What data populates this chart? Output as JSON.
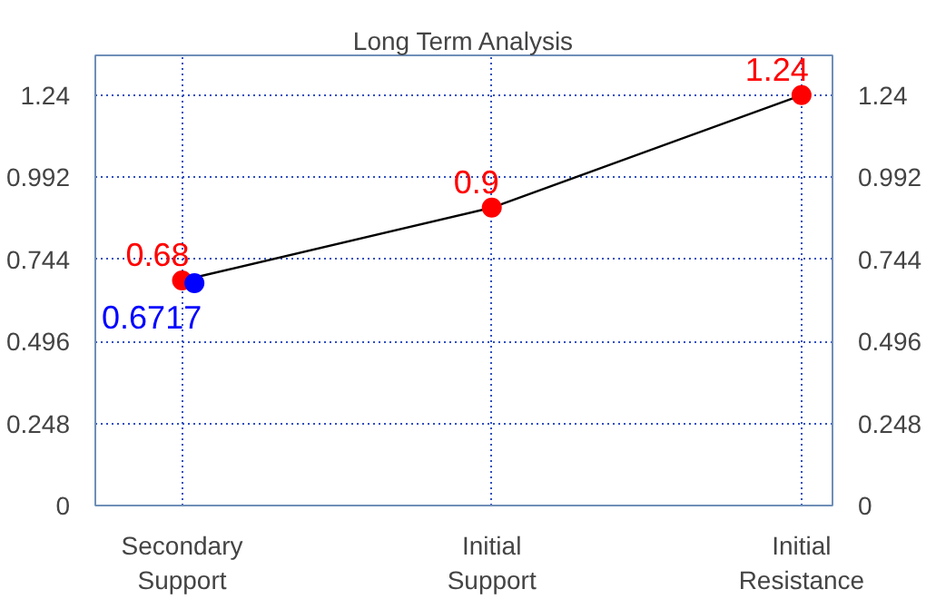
{
  "chart_data": {
    "type": "line",
    "title": "Long Term Analysis",
    "categories": [
      "Secondary Support",
      "Initial Support",
      "Initial Resistance"
    ],
    "series": [
      {
        "type": "line",
        "color": "#000000",
        "marker": "none",
        "values": [
          0.68,
          0.9,
          1.24
        ],
        "value_labels": [
          null,
          null,
          null
        ]
      },
      {
        "type": "scatter",
        "color": "#ff0000",
        "values": [
          0.68,
          0.9,
          1.24
        ]
      },
      {
        "type": "scatter",
        "color": "#0000ff",
        "values": [
          0.6717,
          null,
          null
        ]
      }
    ],
    "ylim": [
      0,
      1.36
    ],
    "yticks": [
      0,
      0.248,
      0.496,
      0.744,
      0.992,
      1.24
    ],
    "y2lim": [
      0,
      1.36
    ],
    "y2ticks": [
      0,
      0.248,
      0.496,
      0.744,
      0.992,
      1.24
    ],
    "grid": true,
    "data_labels": true,
    "marker": "circle"
  }
}
